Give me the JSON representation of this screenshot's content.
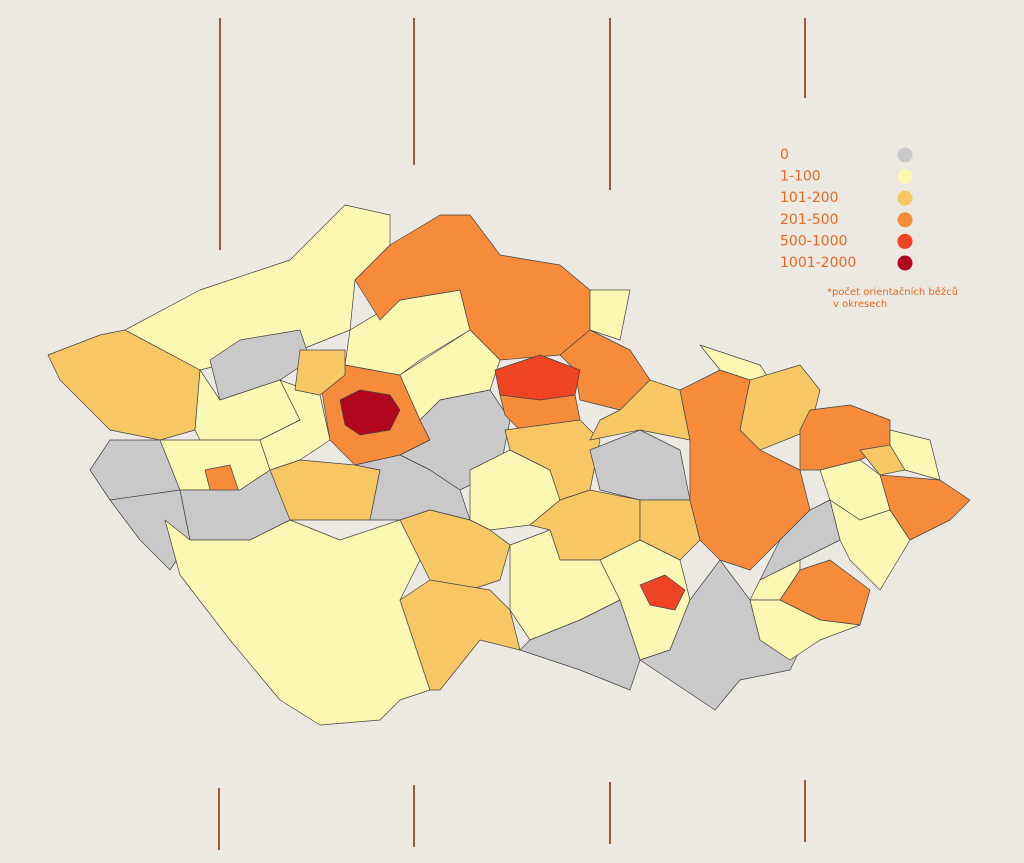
{
  "legend": {
    "items": [
      {
        "label": "0",
        "color": "#c9c9c9"
      },
      {
        "label": "1-100",
        "color": "#fbf8b4"
      },
      {
        "label": "101-200",
        "color": "#f7c766"
      },
      {
        "label": "201-500",
        "color": "#f68b3c"
      },
      {
        "label": "500-1000",
        "color": "#ee4423"
      },
      {
        "label": "1001-2000",
        "color": "#b0071e"
      }
    ]
  },
  "note": {
    "lines": [
      "*počet orientačních běžců",
      "v okresech"
    ]
  }
}
